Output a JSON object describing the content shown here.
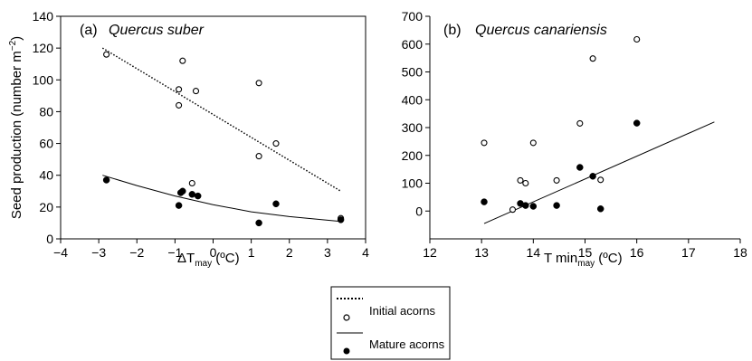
{
  "chart_data": [
    {
      "type": "scatter",
      "panel_label": "(a)",
      "title": "Quercus suber",
      "ylabel": "Seed production (number m",
      "ylabel_sup": "−2",
      "ylabel_close": ")",
      "xlabel_main": "ΔT",
      "xlabel_sub": "may",
      "xlabel_unit": " (ºC)",
      "xlim": [
        -4,
        4
      ],
      "ylim": [
        0,
        140
      ],
      "xticks": [
        -4,
        -3,
        -2,
        -1,
        0,
        1,
        2,
        3,
        4
      ],
      "yticks": [
        0,
        20,
        40,
        60,
        80,
        100,
        120,
        140
      ],
      "tick_labels_x": [
        "−4",
        "−3",
        "−2",
        "−1",
        "0",
        "1",
        "2",
        "3",
        "4"
      ],
      "tick_labels_y": [
        "0",
        "20",
        "40",
        "60",
        "80",
        "100",
        "120",
        "140"
      ],
      "series": [
        {
          "name": "Initial acorns",
          "marker": "open-circle",
          "x": [
            -2.8,
            -0.8,
            -0.9,
            -0.9,
            -0.45,
            -0.55,
            1.2,
            1.2,
            1.65,
            3.35
          ],
          "y": [
            116,
            112,
            94,
            84,
            93,
            35,
            98,
            52,
            60,
            13
          ]
        },
        {
          "name": "Mature acorns",
          "marker": "filled-circle",
          "x": [
            -2.8,
            -0.9,
            -0.85,
            -0.8,
            -0.55,
            -0.4,
            1.2,
            1.65,
            3.35
          ],
          "y": [
            37,
            21,
            29,
            30,
            28,
            27,
            10,
            22,
            12
          ]
        }
      ],
      "fits": [
        {
          "series": "Initial acorns",
          "style": "dotted",
          "kind": "linear",
          "x": [
            -2.9,
            3.35
          ],
          "y": [
            120,
            30
          ]
        },
        {
          "series": "Mature acorns",
          "style": "solid",
          "kind": "curve",
          "x": [
            -2.9,
            -2.0,
            -1.0,
            0.0,
            1.0,
            2.0,
            3.35
          ],
          "y": [
            40,
            33.5,
            27,
            21.5,
            17,
            14,
            11
          ]
        }
      ]
    },
    {
      "type": "scatter",
      "panel_label": "(b)",
      "title": "Quercus canariensis",
      "ylabel": "",
      "xlabel_main": "T min",
      "xlabel_sub": "may",
      "xlabel_unit": " (ºC)",
      "xlim": [
        12,
        18
      ],
      "ylim": [
        -100,
        700
      ],
      "xticks": [
        12,
        13,
        14,
        15,
        16,
        17,
        18
      ],
      "yticks": [
        0,
        100,
        200,
        300,
        400,
        500,
        600,
        700
      ],
      "tick_labels_x": [
        "12",
        "13",
        "14",
        "15",
        "16",
        "17",
        "18"
      ],
      "tick_labels_y": [
        "0",
        "100",
        "200",
        "300",
        "400",
        "500",
        "600",
        "700"
      ],
      "series": [
        {
          "name": "Initial acorns",
          "marker": "open-circle",
          "x": [
            13.05,
            13.6,
            13.75,
            13.85,
            14.0,
            14.45,
            14.9,
            15.15,
            15.3,
            16.0
          ],
          "y": [
            245,
            5,
            110,
            100,
            245,
            110,
            315,
            548,
            112,
            617
          ]
        },
        {
          "name": "Mature acorns",
          "marker": "filled-circle",
          "x": [
            13.05,
            13.75,
            13.85,
            14.0,
            14.45,
            14.9,
            15.15,
            15.3,
            16.0
          ],
          "y": [
            33,
            27,
            20,
            17,
            20,
            157,
            125,
            8,
            316
          ]
        }
      ],
      "fits": [
        {
          "series": "Mature acorns",
          "style": "solid",
          "kind": "linear",
          "x": [
            13.05,
            17.5
          ],
          "y": [
            -45,
            320
          ]
        }
      ]
    }
  ],
  "legend": {
    "items": [
      {
        "label": "Initial acorns",
        "line": "dotted",
        "marker": "open-circle"
      },
      {
        "label": "Mature acorns",
        "line": "solid",
        "marker": "filled-circle"
      }
    ]
  }
}
